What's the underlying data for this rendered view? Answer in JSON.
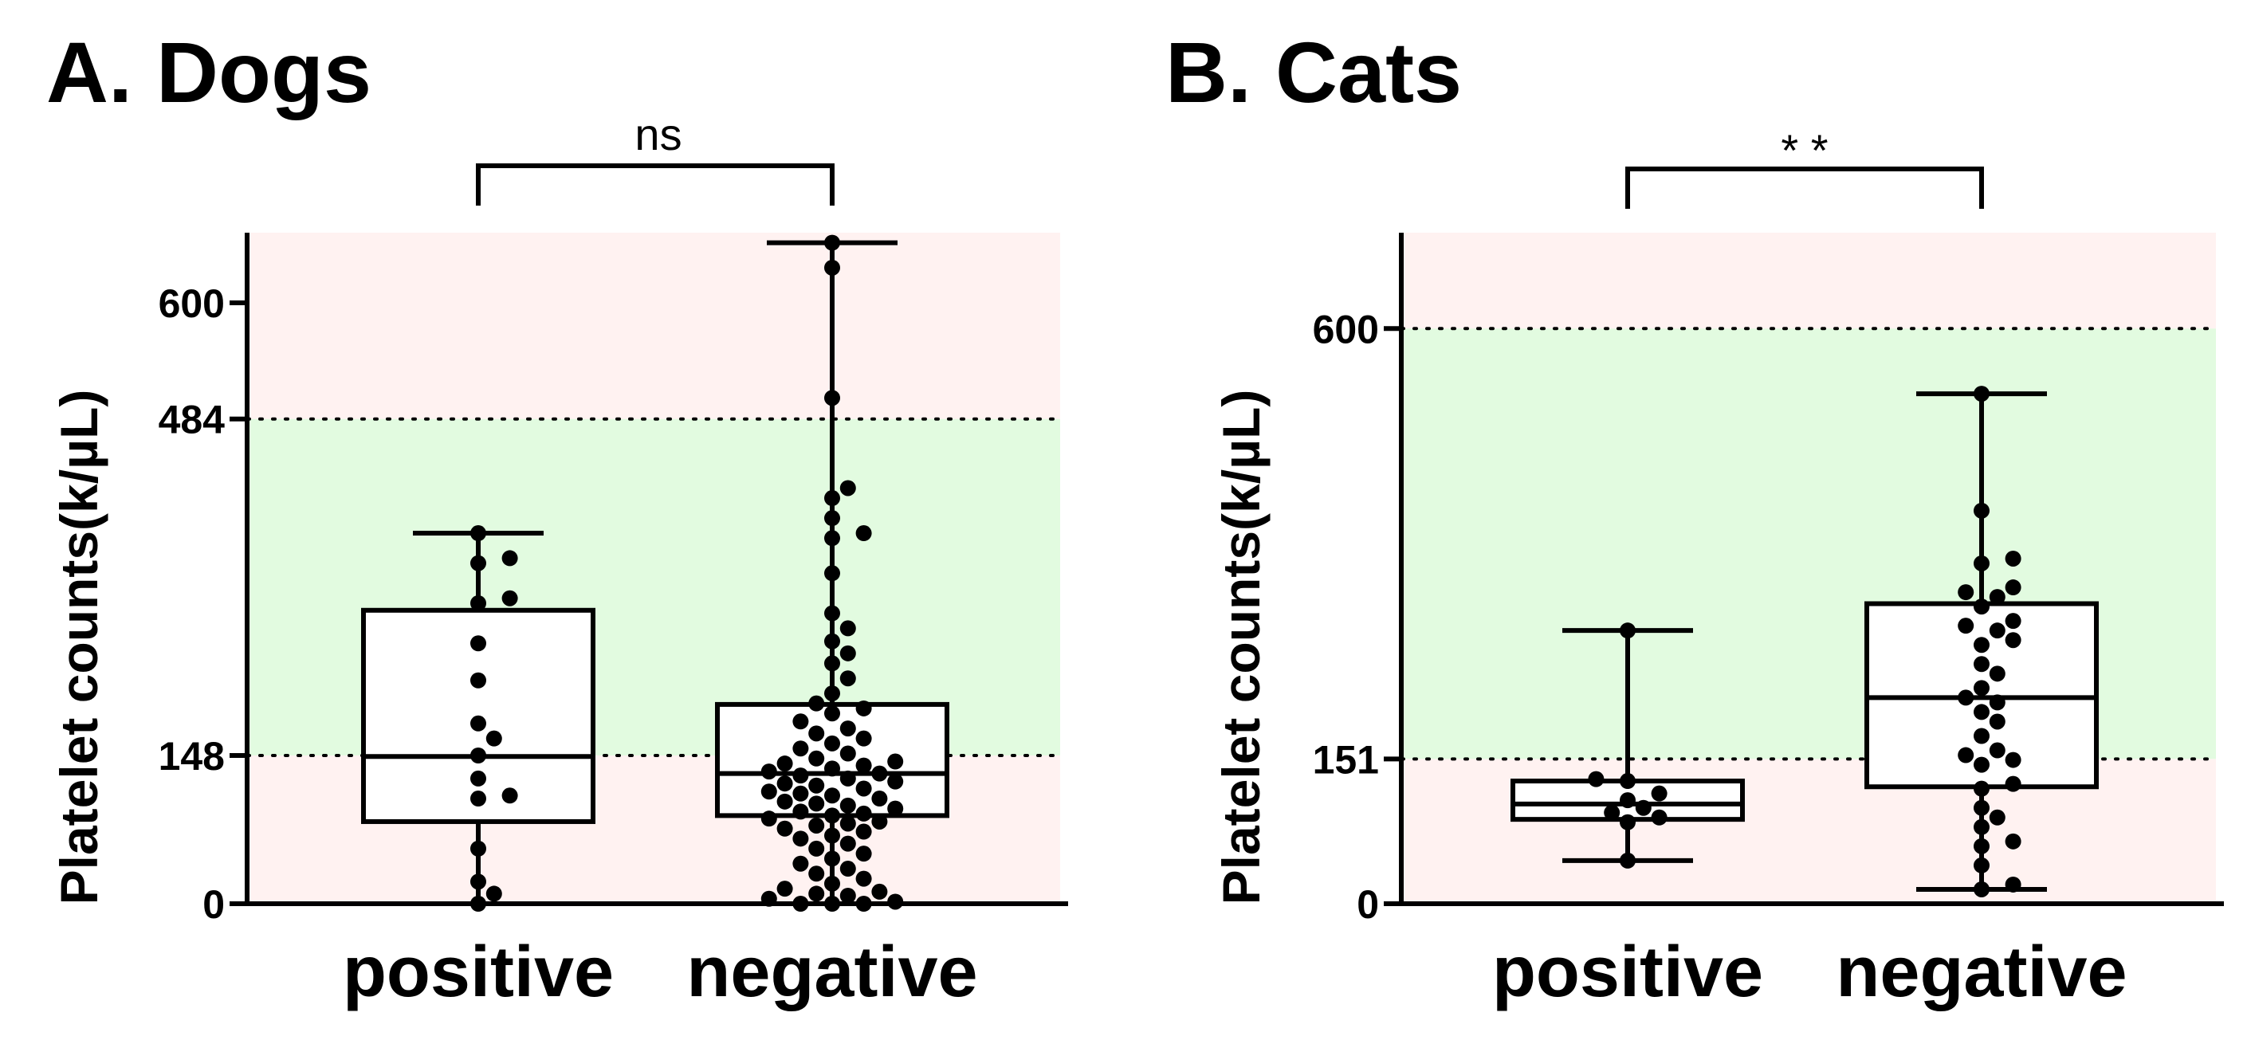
{
  "chart_data": [
    {
      "type": "box",
      "title": "A. Dogs",
      "ylabel": "Platelet counts(k/µL)",
      "ylim": [
        0,
        670
      ],
      "yticks": [
        0,
        148,
        484,
        600
      ],
      "reference_range": [
        148,
        484
      ],
      "shading": {
        "normal": "#e2fbe0",
        "outside": "#fff2f1"
      },
      "significance": "ns",
      "categories": [
        "positive",
        "negative"
      ],
      "boxes": [
        {
          "name": "positive",
          "min": 0,
          "q1": 82,
          "median": 147,
          "q3": 293,
          "max": 370
        },
        {
          "name": "negative",
          "min": 0,
          "q1": 88,
          "median": 130,
          "q3": 199,
          "max": 660
        }
      ],
      "points": [
        [
          0,
          10,
          22,
          55,
          105,
          108,
          125,
          148,
          165,
          180,
          223,
          260,
          300,
          305,
          340,
          345,
          370
        ],
        [
          0,
          0,
          0,
          2,
          5,
          8,
          10,
          12,
          15,
          20,
          25,
          30,
          35,
          40,
          45,
          50,
          55,
          60,
          65,
          68,
          72,
          75,
          78,
          80,
          82,
          85,
          88,
          90,
          92,
          95,
          98,
          100,
          102,
          105,
          108,
          110,
          112,
          115,
          118,
          120,
          122,
          125,
          128,
          130,
          132,
          135,
          138,
          140,
          142,
          145,
          150,
          155,
          160,
          165,
          170,
          175,
          182,
          190,
          195,
          200,
          210,
          225,
          240,
          250,
          262,
          275,
          290,
          330,
          365,
          370,
          385,
          405,
          415,
          505,
          635,
          660
        ]
      ]
    },
    {
      "type": "box",
      "title": "B. Cats",
      "ylabel": "Platelet counts(k/µL)",
      "ylim": [
        0,
        700
      ],
      "yticks": [
        0,
        151,
        600
      ],
      "reference_range": [
        151,
        600
      ],
      "shading": {
        "normal": "#e2fbe0",
        "outside": "#fff2f1"
      },
      "significance": "* *",
      "categories": [
        "positive",
        "negative"
      ],
      "boxes": [
        {
          "name": "positive",
          "min": 45,
          "q1": 88,
          "median": 104,
          "q3": 128,
          "max": 285
        },
        {
          "name": "negative",
          "min": 15,
          "q1": 122,
          "median": 215,
          "q3": 313,
          "max": 532
        }
      ],
      "points": [
        [
          45,
          85,
          90,
          95,
          100,
          108,
          115,
          128,
          130,
          285
        ],
        [
          15,
          20,
          40,
          60,
          65,
          80,
          90,
          100,
          120,
          125,
          145,
          150,
          155,
          160,
          175,
          190,
          200,
          210,
          215,
          225,
          240,
          250,
          270,
          275,
          285,
          290,
          295,
          310,
          320,
          325,
          330,
          355,
          360,
          410,
          532
        ]
      ]
    }
  ]
}
